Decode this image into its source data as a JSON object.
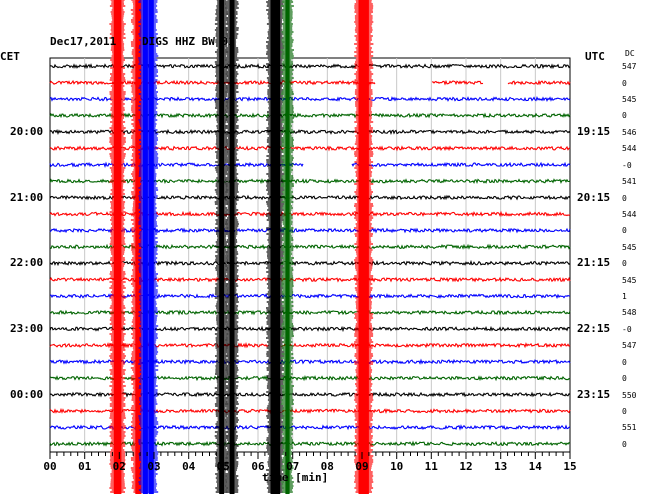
{
  "header": {
    "date": "Dec17,2011",
    "station": "DIGS HHZ BW 01",
    "left_zone": "CET",
    "right_zone": "UTC",
    "dc_label": "DC"
  },
  "chart_data": {
    "type": "line",
    "title": "Dec17,2011 DIGS HHZ BW 01",
    "xlabel": "time [min]",
    "xlim": [
      0,
      15
    ],
    "x_ticks": [
      "00",
      "01",
      "02",
      "03",
      "04",
      "05",
      "06",
      "07",
      "08",
      "09",
      "10",
      "11",
      "12",
      "13",
      "14",
      "15"
    ],
    "row_count": 24,
    "row_colors": [
      "#000000",
      "#ff0000",
      "#0000ff",
      "#006400"
    ],
    "left_time_labels": [
      {
        "row": 4,
        "label": "20:00"
      },
      {
        "row": 8,
        "label": "21:00"
      },
      {
        "row": 12,
        "label": "22:00"
      },
      {
        "row": 16,
        "label": "23:00"
      },
      {
        "row": 20,
        "label": "00:00"
      }
    ],
    "right_time_labels": [
      {
        "row": 4,
        "label": "19:15"
      },
      {
        "row": 8,
        "label": "20:15"
      },
      {
        "row": 12,
        "label": "21:15"
      },
      {
        "row": 16,
        "label": "22:15"
      },
      {
        "row": 20,
        "label": "23:15"
      }
    ],
    "dc_offsets": [
      "547",
      "0",
      "545",
      "0",
      "546",
      "544",
      "-0",
      "541",
      "0",
      "544",
      "0",
      "545",
      "0",
      "545",
      "1",
      "548",
      "-0",
      "547",
      "0",
      "0",
      "550",
      "0",
      "551",
      "0"
    ],
    "events": [
      {
        "minute": 1.95,
        "width": 0.22,
        "color": "#ff0000",
        "rows": [
          0,
          23
        ]
      },
      {
        "minute": 2.55,
        "width": 0.18,
        "color": "#ff0000",
        "rows": [
          0,
          23
        ]
      },
      {
        "minute": 2.75,
        "width": 0.15,
        "color": "#0000ff",
        "rows": [
          0,
          23
        ]
      },
      {
        "minute": 2.92,
        "width": 0.15,
        "color": "#0000ff",
        "rows": [
          0,
          23
        ]
      },
      {
        "minute": 4.95,
        "width": 0.14,
        "color": "#000000",
        "rows": [
          0,
          23
        ]
      },
      {
        "minute": 5.25,
        "width": 0.14,
        "color": "#000000",
        "rows": [
          0,
          23
        ]
      },
      {
        "minute": 6.5,
        "width": 0.28,
        "color": "#000000",
        "rows": [
          0,
          23
        ]
      },
      {
        "minute": 6.85,
        "width": 0.12,
        "color": "#006400",
        "rows": [
          0,
          23
        ]
      },
      {
        "minute": 9.05,
        "width": 0.3,
        "color": "#ff0000",
        "rows": [
          0,
          23
        ]
      }
    ],
    "gaps": [
      {
        "row": 1,
        "from": 9.4,
        "to": 11.0
      },
      {
        "row": 1,
        "from": 12.5,
        "to": 13.2
      },
      {
        "row": 6,
        "from": 7.3,
        "to": 8.7
      }
    ]
  }
}
